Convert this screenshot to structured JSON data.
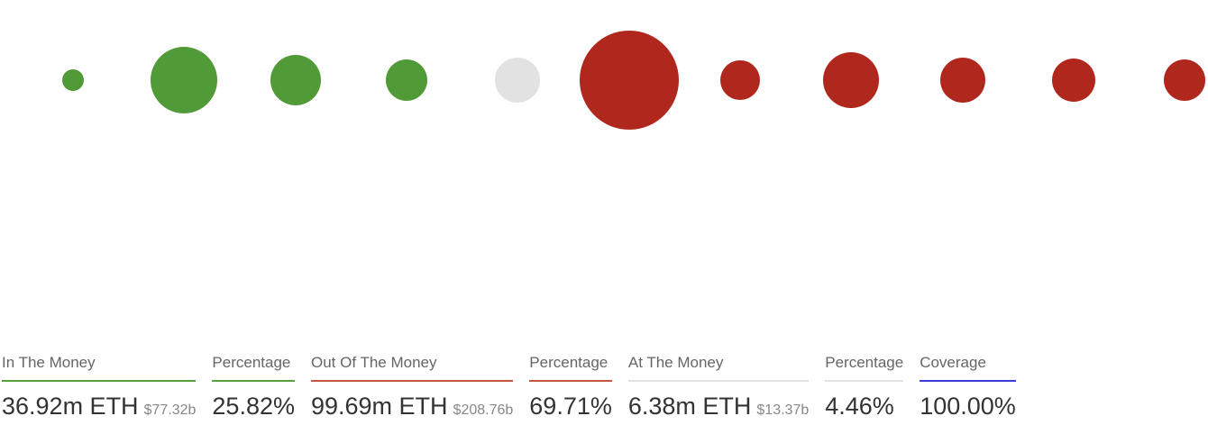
{
  "stats": [
    {
      "label": "In The Money",
      "value": "36.92m ETH",
      "sub": "$77.32b",
      "color": "#55a03c"
    },
    {
      "label": "Percentage",
      "value": "25.82%",
      "color": "#55a03c"
    },
    {
      "label": "Out Of The Money",
      "value": "99.69m ETH",
      "sub": "$208.76b",
      "color": "#c4553f"
    },
    {
      "label": "Percentage",
      "value": "69.71%",
      "color": "#c4553f"
    },
    {
      "label": "At The Money",
      "value": "6.38m ETH",
      "sub": "$13.37b",
      "color": "#e2e2e2"
    },
    {
      "label": "Percentage",
      "value": "4.46%",
      "color": "#e2e2e2"
    },
    {
      "label": "Coverage",
      "value": "100.00%",
      "color": "#3a3ad8"
    }
  ]
}
